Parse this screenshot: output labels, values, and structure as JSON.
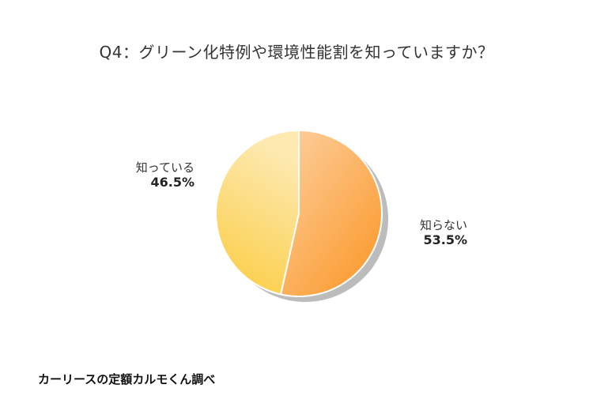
{
  "chart_data": {
    "type": "pie",
    "title": "Q4：グリーン化特例や環境性能割を知っていますか？",
    "slices": [
      {
        "label": "知らない",
        "value": 53.5,
        "value_label": "53.5%",
        "color_start": "#fdd0a0",
        "color_end": "#fb9a2e"
      },
      {
        "label": "知っている",
        "value": 46.5,
        "value_label": "46.5%",
        "color_start": "#fde9b0",
        "color_end": "#fccb3e"
      }
    ],
    "start_angle": "12 o'clock",
    "direction": "clockwise",
    "shadow_color": "#bcbcbc",
    "source": "カーリースの定額カルモくん調べ"
  }
}
